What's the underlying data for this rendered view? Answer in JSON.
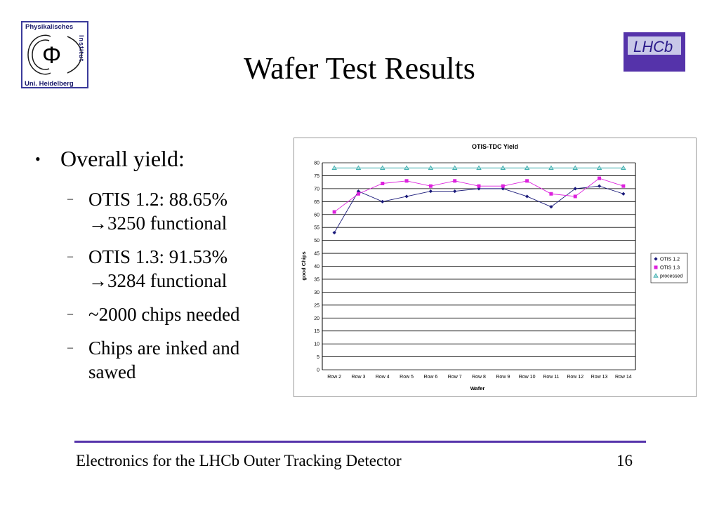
{
  "slide": {
    "title": "Wafer Test Results",
    "footer": "Electronics for the LHCb Outer Tracking Detector",
    "page_number": "16"
  },
  "logos": {
    "left_line1": "Physikalisches",
    "left_side": "Institut",
    "left_line2": "Uni. Heidelberg",
    "left_symbol": "Φ",
    "right": "LHCb"
  },
  "bullets": {
    "main": "Overall yield:",
    "items": [
      {
        "line1": "OTIS 1.2: 88.65%",
        "line2": "→3250 functional"
      },
      {
        "line1": "OTIS 1.3: 91.53%",
        "line2": "→3284 functional"
      },
      {
        "line1": "~2000 chips needed",
        "line2": ""
      },
      {
        "line1": "Chips are inked and",
        "line2": "sawed"
      }
    ]
  },
  "colors": {
    "otis12": "#1a1a7a",
    "otis13": "#dd22dd",
    "processed": "#33aaaa",
    "accent_line": "#5533aa"
  },
  "chart_data": {
    "type": "line",
    "title": "OTIS-TDC Yield",
    "xlabel": "Wafer",
    "ylabel": "good Chips",
    "categories": [
      "Row 2",
      "Row 3",
      "Row 4",
      "Row 5",
      "Row 6",
      "Row 7",
      "Row 8",
      "Row 9",
      "Row 10",
      "Row 11",
      "Row 12",
      "Row 13",
      "Row 14"
    ],
    "ylim": [
      0,
      80
    ],
    "yticks": [
      0,
      5,
      10,
      15,
      20,
      25,
      30,
      35,
      40,
      45,
      50,
      55,
      60,
      65,
      70,
      75,
      80
    ],
    "grid": true,
    "legend_position": "right",
    "series": [
      {
        "name": "OTIS 1.2",
        "marker": "diamond",
        "values": [
          53,
          69,
          65,
          67,
          69,
          69,
          70,
          70,
          67,
          63,
          70,
          71,
          68
        ]
      },
      {
        "name": "OTIS 1.3",
        "marker": "square",
        "values": [
          61,
          68,
          72,
          73,
          71,
          73,
          71,
          71,
          73,
          68,
          67,
          74,
          71
        ]
      },
      {
        "name": "processed",
        "marker": "triangle",
        "values": [
          78,
          78,
          78,
          78,
          78,
          78,
          78,
          78,
          78,
          78,
          78,
          78,
          78
        ]
      }
    ]
  }
}
